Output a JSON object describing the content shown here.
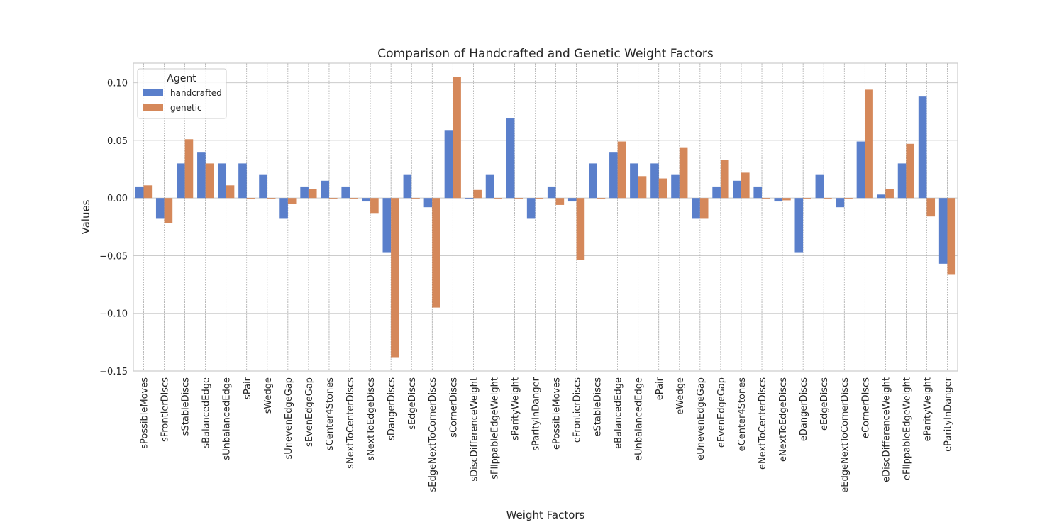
{
  "chart_data": {
    "type": "bar",
    "title": "Comparison of Handcrafted and Genetic Weight Factors",
    "xlabel": "Weight Factors",
    "ylabel": "Values",
    "ylim": [
      -0.15,
      0.117
    ],
    "yticks": [
      -0.15,
      -0.1,
      -0.05,
      0.0,
      0.05,
      0.1
    ],
    "ytick_labels": [
      "−0.15",
      "−0.10",
      "−0.05",
      "0.00",
      "0.05",
      "0.10"
    ],
    "grid": true,
    "legend": {
      "title": "Agent",
      "position": "top-left"
    },
    "categories": [
      "sPossibleMoves",
      "sFrontierDiscs",
      "sStableDiscs",
      "sBalancedEdge",
      "sUnbalancedEdge",
      "sPair",
      "sWedge",
      "sUnevenEdgeGap",
      "sEvenEdgeGap",
      "sCenter4Stones",
      "sNextToCenterDiscs",
      "sNextToEdgeDiscs",
      "sDangerDiscs",
      "sEdgeDiscs",
      "sEdgeNextToCornerDiscs",
      "sCornerDiscs",
      "sDiscDifferenceWeight",
      "sFlippableEdgeWeight",
      "sParityWeight",
      "sParityInDanger",
      "ePossibleMoves",
      "eFrontierDiscs",
      "eStableDiscs",
      "eBalancedEdge",
      "eUnbalancedEdge",
      "ePair",
      "eWedge",
      "eUnevenEdgeGap",
      "eEvenEdgeGap",
      "eCenter4Stones",
      "eNextToCenterDiscs",
      "eNextToEdgeDiscs",
      "eDangerDiscs",
      "eEdgeDiscs",
      "eEdgeNextToCornerDiscs",
      "eCornerDiscs",
      "eDiscDifferenceWeight",
      "eFlippableEdgeWeight",
      "eParityWeight",
      "eParityInDanger"
    ],
    "series": [
      {
        "name": "handcrafted",
        "color": "#5a7fcb",
        "values": [
          0.01,
          -0.018,
          0.03,
          0.04,
          0.03,
          0.03,
          0.02,
          -0.018,
          0.01,
          0.015,
          0.01,
          -0.003,
          -0.047,
          0.02,
          -0.008,
          0.059,
          0.0,
          0.02,
          0.069,
          -0.018,
          0.01,
          -0.003,
          0.03,
          0.04,
          0.03,
          0.03,
          0.02,
          -0.018,
          0.01,
          0.015,
          0.01,
          -0.003,
          -0.047,
          0.02,
          -0.008,
          0.049,
          0.003,
          0.03,
          0.088,
          -0.057
        ]
      },
      {
        "name": "genetic",
        "color": "#d5885a",
        "values": [
          0.011,
          -0.022,
          0.051,
          0.03,
          0.011,
          -0.001,
          0.0,
          -0.005,
          0.008,
          0.0,
          0.0,
          -0.013,
          -0.138,
          0.0,
          -0.095,
          0.105,
          0.007,
          0.0,
          0.0,
          0.0,
          -0.006,
          -0.054,
          0.0,
          0.049,
          0.019,
          0.017,
          0.044,
          -0.018,
          0.033,
          0.022,
          0.0,
          -0.002,
          0.0,
          0.0,
          0.0,
          0.094,
          0.008,
          0.047,
          -0.016,
          -0.066
        ]
      }
    ]
  }
}
